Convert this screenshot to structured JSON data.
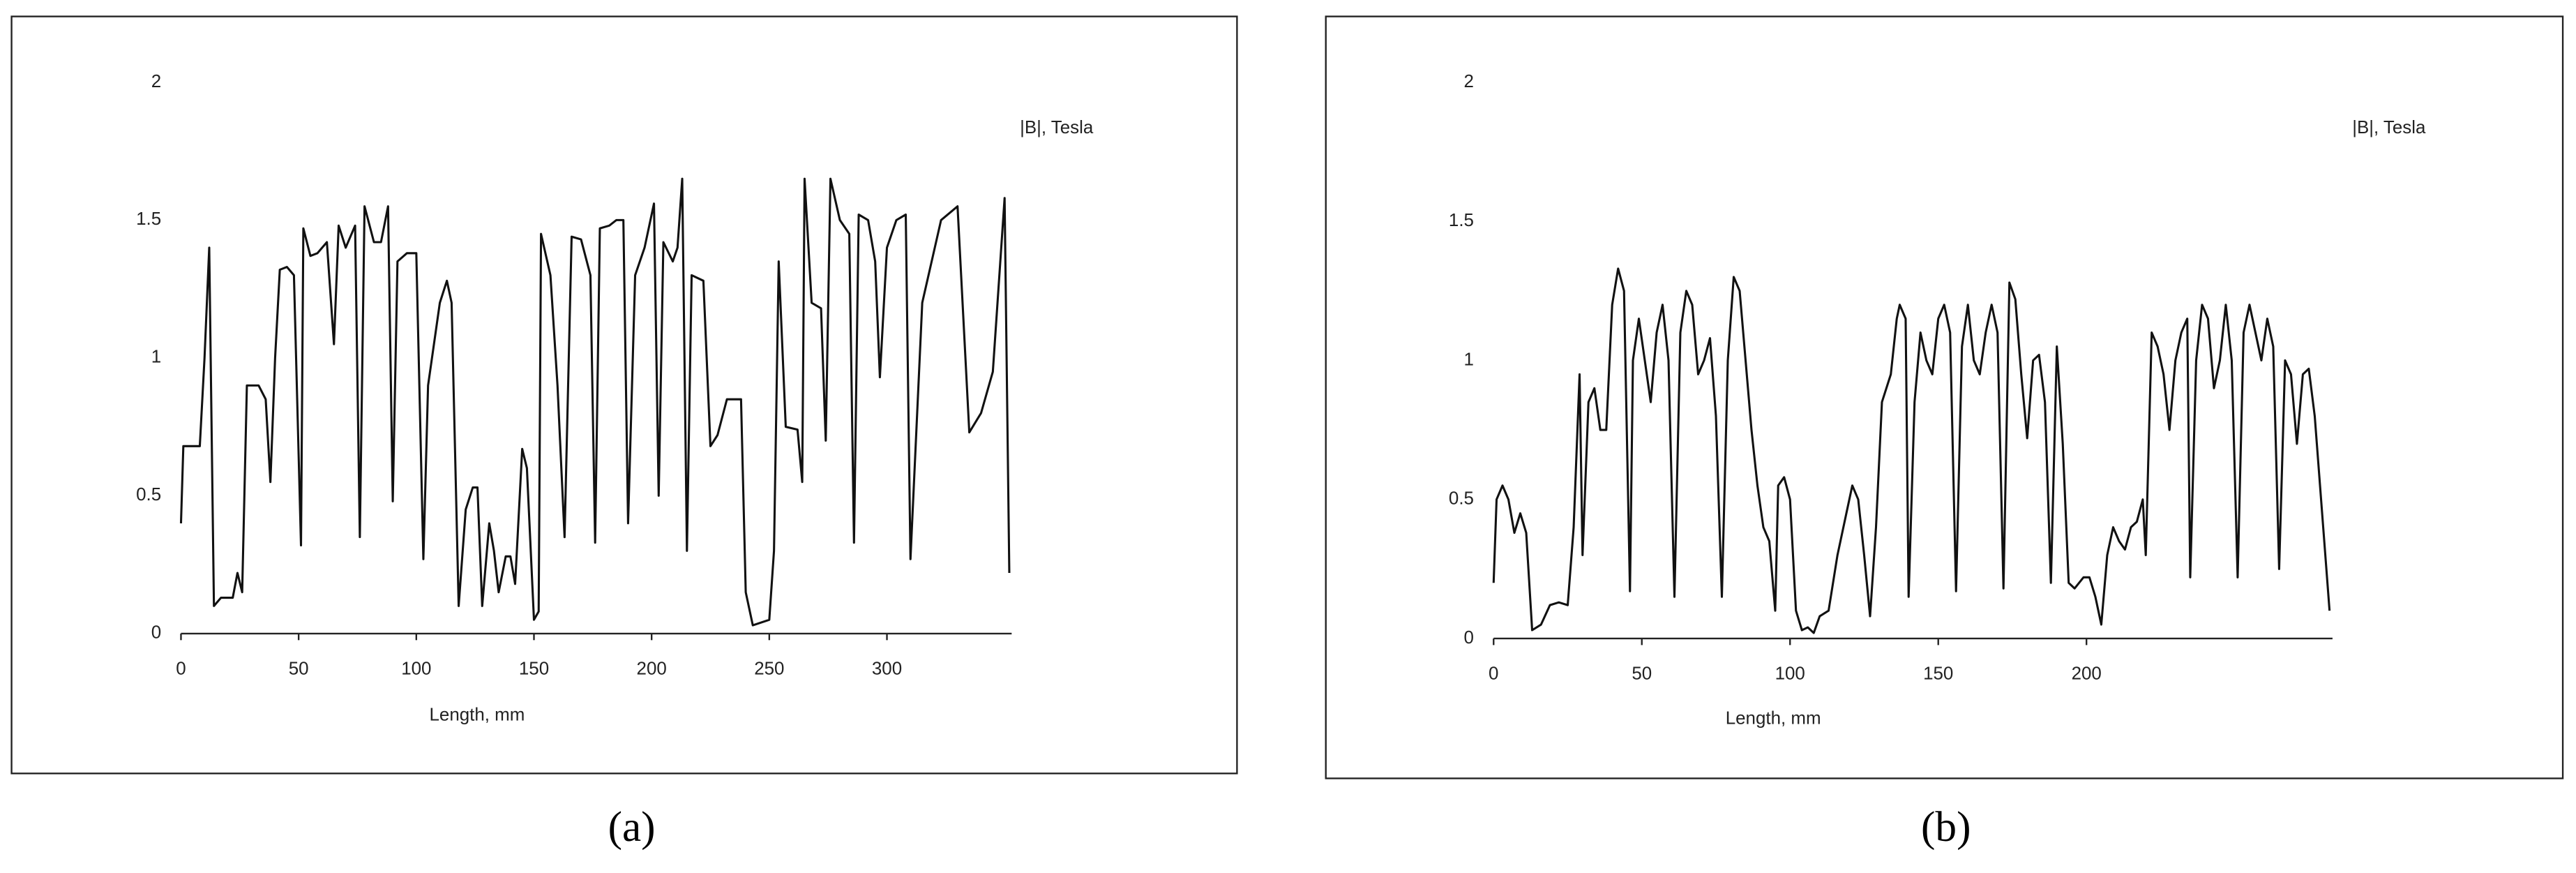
{
  "chart_data": [
    {
      "type": "line",
      "caption": "(a)",
      "xlabel": "Length, mm",
      "ylabel": "|B|, Tesla",
      "color": "#111111",
      "xlim": [
        0,
        353
      ],
      "xticks": [
        0,
        50,
        100,
        150,
        200,
        250,
        300
      ],
      "ylim": [
        0,
        2
      ],
      "yticks": [
        0,
        0.5,
        1,
        1.5,
        2
      ],
      "x": [
        0,
        1,
        8,
        10,
        12,
        14,
        17,
        22,
        24,
        26,
        28,
        33,
        36,
        38,
        40,
        42,
        45,
        48,
        51,
        52,
        55,
        58,
        62,
        65,
        67,
        70,
        74,
        76,
        78,
        82,
        85,
        88,
        90,
        92,
        96,
        100,
        103,
        105,
        110,
        113,
        115,
        118,
        121,
        124,
        126,
        128,
        131,
        133,
        135,
        138,
        140,
        142,
        145,
        147,
        150,
        152,
        153,
        157,
        160,
        163,
        166,
        170,
        174,
        176,
        178,
        182,
        185,
        188,
        190,
        193,
        197,
        201,
        203,
        205,
        209,
        211,
        213,
        215,
        217,
        222,
        225,
        228,
        232,
        238,
        240,
        243,
        250,
        252,
        254,
        257,
        262,
        264,
        265,
        268,
        272,
        274,
        276,
        280,
        284,
        286,
        288,
        292,
        295,
        297,
        300,
        304,
        308,
        310,
        315,
        323,
        330,
        335,
        340,
        345,
        350,
        352
      ],
      "values": [
        0.4,
        0.68,
        0.68,
        1.0,
        1.4,
        0.1,
        0.13,
        0.13,
        0.22,
        0.15,
        0.9,
        0.9,
        0.85,
        0.55,
        1.0,
        1.32,
        1.33,
        1.3,
        0.32,
        1.47,
        1.37,
        1.38,
        1.42,
        1.05,
        1.48,
        1.4,
        1.48,
        0.35,
        1.55,
        1.42,
        1.42,
        1.55,
        0.48,
        1.35,
        1.38,
        1.38,
        0.27,
        0.9,
        1.2,
        1.28,
        1.2,
        0.1,
        0.45,
        0.53,
        0.53,
        0.1,
        0.4,
        0.3,
        0.15,
        0.28,
        0.28,
        0.18,
        0.67,
        0.6,
        0.05,
        0.08,
        1.45,
        1.3,
        0.9,
        0.35,
        1.44,
        1.43,
        1.3,
        0.33,
        1.47,
        1.48,
        1.5,
        1.5,
        0.4,
        1.3,
        1.4,
        1.56,
        0.5,
        1.42,
        1.35,
        1.4,
        1.65,
        0.3,
        1.3,
        1.28,
        0.68,
        0.72,
        0.85,
        0.85,
        0.15,
        0.03,
        0.05,
        0.3,
        1.35,
        0.75,
        0.74,
        0.55,
        1.65,
        1.2,
        1.18,
        0.7,
        1.65,
        1.5,
        1.45,
        0.33,
        1.52,
        1.5,
        1.35,
        0.93,
        1.4,
        1.5,
        1.52,
        0.27,
        1.2,
        1.5,
        1.55,
        0.73,
        0.8,
        0.95,
        1.58,
        0.22
      ]
    },
    {
      "type": "line",
      "caption": "(b)",
      "xlabel": "Length, mm",
      "ylabel": "|B|, Tesla",
      "color": "#111111",
      "xlim": [
        0,
        283
      ],
      "xticks": [
        0,
        50,
        100,
        150,
        200
      ],
      "ylim": [
        0,
        2
      ],
      "yticks": [
        0,
        0.5,
        1,
        1.5,
        2
      ],
      "x": [
        0,
        1,
        3,
        5,
        7,
        9,
        11,
        13,
        16,
        19,
        22,
        25,
        27,
        29,
        30,
        32,
        34,
        36,
        38,
        40,
        42,
        44,
        46,
        47,
        49,
        51,
        53,
        55,
        57,
        59,
        61,
        63,
        65,
        67,
        69,
        71,
        73,
        75,
        77,
        79,
        81,
        83,
        85,
        87,
        89,
        91,
        93,
        95,
        96,
        98,
        100,
        102,
        104,
        106,
        108,
        110,
        113,
        116,
        119,
        121,
        123,
        125,
        127,
        129,
        131,
        134,
        136,
        137,
        139,
        140,
        142,
        144,
        146,
        148,
        150,
        152,
        154,
        156,
        158,
        160,
        162,
        164,
        166,
        168,
        170,
        172,
        174,
        176,
        178,
        180,
        182,
        184,
        186,
        188,
        190,
        192,
        194,
        196,
        199,
        201,
        203,
        205,
        207,
        209,
        211,
        213,
        215,
        217,
        219,
        220,
        222,
        224,
        226,
        228,
        230,
        232,
        234,
        235,
        237,
        239,
        241,
        243,
        245,
        247,
        249,
        251,
        253,
        255,
        257,
        259,
        261,
        263,
        265,
        267,
        269,
        271,
        273,
        275,
        277,
        282
      ],
      "values": [
        0.2,
        0.5,
        0.55,
        0.5,
        0.38,
        0.45,
        0.38,
        0.03,
        0.05,
        0.12,
        0.13,
        0.12,
        0.4,
        0.95,
        0.3,
        0.85,
        0.9,
        0.75,
        0.75,
        1.2,
        1.33,
        1.25,
        0.17,
        1.0,
        1.15,
        1.0,
        0.85,
        1.1,
        1.2,
        1.0,
        0.15,
        1.1,
        1.25,
        1.2,
        0.95,
        1.0,
        1.08,
        0.8,
        0.15,
        1.0,
        1.3,
        1.25,
        1.0,
        0.75,
        0.55,
        0.4,
        0.35,
        0.1,
        0.55,
        0.58,
        0.5,
        0.1,
        0.03,
        0.04,
        0.02,
        0.08,
        0.1,
        0.3,
        0.45,
        0.55,
        0.5,
        0.3,
        0.08,
        0.4,
        0.85,
        0.95,
        1.15,
        1.2,
        1.15,
        0.15,
        0.85,
        1.1,
        1.0,
        0.95,
        1.15,
        1.2,
        1.1,
        0.17,
        1.05,
        1.2,
        1.0,
        0.95,
        1.1,
        1.2,
        1.1,
        0.18,
        1.28,
        1.22,
        0.95,
        0.72,
        1.0,
        1.02,
        0.85,
        0.2,
        1.05,
        0.7,
        0.2,
        0.18,
        0.22,
        0.22,
        0.15,
        0.05,
        0.3,
        0.4,
        0.35,
        0.32,
        0.4,
        0.42,
        0.5,
        0.3,
        1.1,
        1.05,
        0.95,
        0.75,
        1.0,
        1.1,
        1.15,
        0.22,
        1.0,
        1.2,
        1.15,
        0.9,
        1.0,
        1.2,
        1.0,
        0.22,
        1.1,
        1.2,
        1.1,
        1.0,
        1.15,
        1.05,
        0.25,
        1.0,
        0.95,
        0.7,
        0.95,
        0.97,
        0.8,
        0.1
      ]
    }
  ]
}
